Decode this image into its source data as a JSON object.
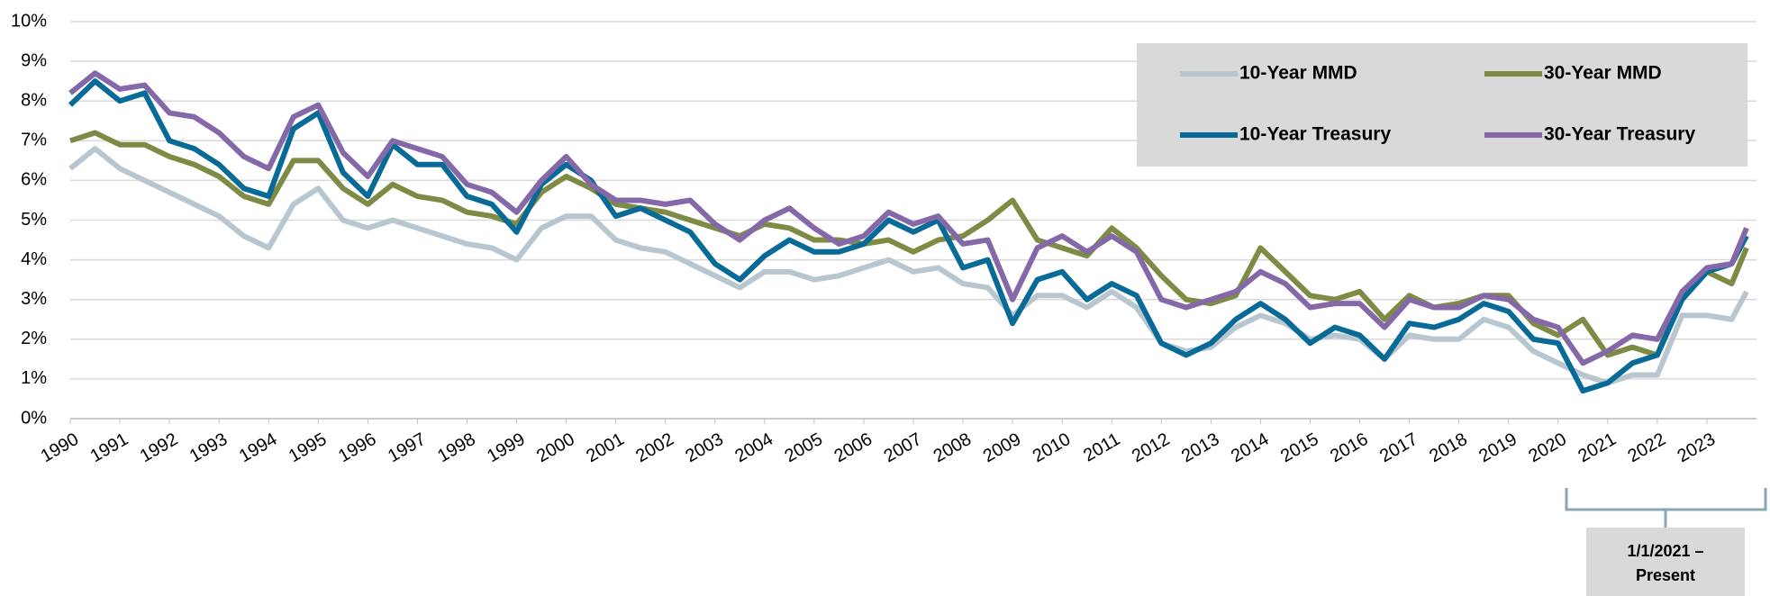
{
  "chart_data": {
    "type": "line",
    "x": [
      1990,
      1990.5,
      1991,
      1991.5,
      1992,
      1992.5,
      1993,
      1993.5,
      1994,
      1994.5,
      1995,
      1995.5,
      1996,
      1996.5,
      1997,
      1997.5,
      1998,
      1998.5,
      1999,
      1999.5,
      2000,
      2000.5,
      2001,
      2001.5,
      2002,
      2002.5,
      2003,
      2003.5,
      2004,
      2004.5,
      2005,
      2005.5,
      2006,
      2006.5,
      2007,
      2007.5,
      2008,
      2008.5,
      2009,
      2009.5,
      2010,
      2010.5,
      2011,
      2011.5,
      2012,
      2012.5,
      2013,
      2013.5,
      2014,
      2014.5,
      2015,
      2015.5,
      2016,
      2016.5,
      2017,
      2017.5,
      2018,
      2018.5,
      2019,
      2019.5,
      2020,
      2020.5,
      2021,
      2021.5,
      2022,
      2022.5,
      2023,
      2023.5,
      2023.8
    ],
    "series": [
      {
        "name": "10-Year MMD",
        "color": "#b8c7cf",
        "values": [
          6.3,
          6.8,
          6.3,
          6.0,
          5.7,
          5.4,
          5.1,
          4.6,
          4.3,
          5.4,
          5.8,
          5.0,
          4.8,
          5.0,
          4.8,
          4.6,
          4.4,
          4.3,
          4.0,
          4.8,
          5.1,
          5.1,
          4.5,
          4.3,
          4.2,
          3.9,
          3.6,
          3.3,
          3.7,
          3.7,
          3.5,
          3.6,
          3.8,
          4.0,
          3.7,
          3.8,
          3.4,
          3.3,
          2.6,
          3.1,
          3.1,
          2.8,
          3.2,
          2.8,
          1.9,
          1.7,
          1.8,
          2.3,
          2.6,
          2.4,
          2.0,
          2.1,
          2.0,
          1.5,
          2.1,
          2.0,
          2.0,
          2.5,
          2.3,
          1.7,
          1.4,
          1.1,
          0.9,
          1.1,
          1.1,
          2.6,
          2.6,
          2.5,
          3.2
        ]
      },
      {
        "name": "30-Year MMD",
        "color": "#7d8b45",
        "values": [
          7.0,
          7.2,
          6.9,
          6.9,
          6.6,
          6.4,
          6.1,
          5.6,
          5.4,
          6.5,
          6.5,
          5.8,
          5.4,
          5.9,
          5.6,
          5.5,
          5.2,
          5.1,
          4.9,
          5.7,
          6.1,
          5.8,
          5.4,
          5.3,
          5.2,
          5.0,
          4.8,
          4.6,
          4.9,
          4.8,
          4.5,
          4.5,
          4.4,
          4.5,
          4.2,
          4.5,
          4.6,
          5.0,
          5.5,
          4.5,
          4.3,
          4.1,
          4.8,
          4.3,
          3.6,
          3.0,
          2.9,
          3.1,
          4.3,
          3.7,
          3.1,
          3.0,
          3.2,
          2.5,
          3.1,
          2.8,
          2.9,
          3.1,
          3.1,
          2.4,
          2.1,
          2.5,
          1.6,
          1.8,
          1.6,
          3.2,
          3.7,
          3.4,
          4.3
        ]
      },
      {
        "name": "10-Year Treasury",
        "color": "#086a96",
        "values": [
          7.9,
          8.5,
          8.0,
          8.2,
          7.0,
          6.8,
          6.4,
          5.8,
          5.6,
          7.3,
          7.7,
          6.2,
          5.6,
          6.9,
          6.4,
          6.4,
          5.6,
          5.4,
          4.7,
          5.9,
          6.4,
          6.0,
          5.1,
          5.3,
          5.0,
          4.7,
          3.9,
          3.5,
          4.1,
          4.5,
          4.2,
          4.2,
          4.4,
          5.0,
          4.7,
          5.0,
          3.8,
          4.0,
          2.4,
          3.5,
          3.7,
          3.0,
          3.4,
          3.1,
          1.9,
          1.6,
          1.9,
          2.5,
          2.9,
          2.5,
          1.9,
          2.3,
          2.1,
          1.5,
          2.4,
          2.3,
          2.5,
          2.9,
          2.7,
          2.0,
          1.9,
          0.7,
          0.9,
          1.4,
          1.6,
          3.0,
          3.7,
          3.9,
          4.6
        ]
      },
      {
        "name": "30-Year Treasury",
        "color": "#8468a8",
        "values": [
          8.2,
          8.7,
          8.3,
          8.4,
          7.7,
          7.6,
          7.2,
          6.6,
          6.3,
          7.6,
          7.9,
          6.7,
          6.1,
          7.0,
          6.8,
          6.6,
          5.9,
          5.7,
          5.2,
          6.0,
          6.6,
          5.9,
          5.5,
          5.5,
          5.4,
          5.5,
          4.9,
          4.5,
          5.0,
          5.3,
          4.8,
          4.4,
          4.6,
          5.2,
          4.9,
          5.1,
          4.4,
          4.5,
          3.0,
          4.3,
          4.6,
          4.2,
          4.6,
          4.2,
          3.0,
          2.8,
          3.0,
          3.2,
          3.7,
          3.4,
          2.8,
          2.9,
          2.9,
          2.3,
          3.0,
          2.8,
          2.8,
          3.1,
          3.0,
          2.5,
          2.3,
          1.4,
          1.7,
          2.1,
          2.0,
          3.2,
          3.8,
          3.9,
          4.8
        ]
      }
    ],
    "xlim": [
      1990,
      2024
    ],
    "xticks": [
      1990,
      1991,
      1992,
      1993,
      1994,
      1995,
      1996,
      1997,
      1998,
      1999,
      2000,
      2001,
      2002,
      2003,
      2004,
      2005,
      2006,
      2007,
      2008,
      2009,
      2010,
      2011,
      2012,
      2013,
      2014,
      2015,
      2016,
      2017,
      2018,
      2019,
      2020,
      2021,
      2022,
      2023
    ],
    "ylim": [
      0,
      10
    ],
    "yticks": [
      {
        "value": 0,
        "label": "0%"
      },
      {
        "value": 1,
        "label": "1%"
      },
      {
        "value": 2,
        "label": "2%"
      },
      {
        "value": 3,
        "label": "3%"
      },
      {
        "value": 4,
        "label": "4%"
      },
      {
        "value": 5,
        "label": "5%"
      },
      {
        "value": 6,
        "label": "6%"
      },
      {
        "value": 7,
        "label": "7%"
      },
      {
        "value": 8,
        "label": "8%"
      },
      {
        "value": 9,
        "label": "9%"
      },
      {
        "value": 10,
        "label": "10%"
      }
    ],
    "grid": true,
    "legend": "upper right",
    "annotation": [
      "1/1/2021 –",
      "Present"
    ]
  }
}
